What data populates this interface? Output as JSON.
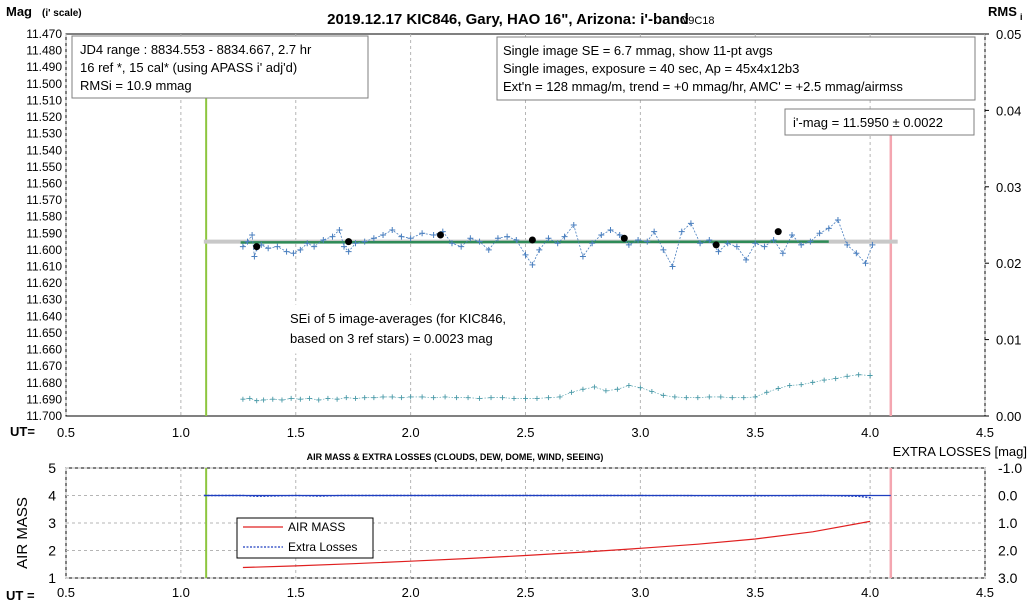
{
  "chart_data": [
    {
      "type": "scatter",
      "title": "2019.12.17 KIC846, Gary, HAO 16\", Arizona: i'-band",
      "version": "- v9C18",
      "ylabel": "Mag",
      "ylabel_sub": "(i' scale)",
      "y2label": "RMS",
      "y2label_sub": "i",
      "xlabel": "UT=",
      "xlim": [
        0.5,
        4.5
      ],
      "ylim": [
        11.47,
        11.7
      ],
      "y_inverted": true,
      "y2lim": [
        0.0,
        0.05
      ],
      "grid": true,
      "x_ticks": [
        "0.5",
        "1.0",
        "1.5",
        "2.0",
        "2.5",
        "3.0",
        "3.5",
        "4.0",
        "4.5"
      ],
      "y_ticks": [
        "11.470",
        "11.480",
        "11.490",
        "11.500",
        "11.510",
        "11.520",
        "11.530",
        "11.540",
        "11.550",
        "11.560",
        "11.570",
        "11.580",
        "11.590",
        "11.600",
        "11.610",
        "11.620",
        "11.630",
        "11.640",
        "11.650",
        "11.660",
        "11.670",
        "11.680",
        "11.690",
        "11.700"
      ],
      "y2_ticks": [
        "0.05",
        "0.04",
        "0.03",
        "0.02",
        "0.01",
        "0.00"
      ],
      "vertical_lines": {
        "green_ut": 1.11,
        "pink_ut": 4.09
      },
      "mean_mag": 11.595,
      "trend_line": {
        "x": [
          1.26,
          3.82
        ],
        "y": [
          11.5955,
          11.595
        ]
      },
      "individual_obs": {
        "x": [
          1.27,
          1.29,
          1.31,
          1.32,
          1.33,
          1.35,
          1.38,
          1.42,
          1.46,
          1.49,
          1.52,
          1.55,
          1.58,
          1.62,
          1.66,
          1.69,
          1.71,
          1.73,
          1.76,
          1.8,
          1.84,
          1.88,
          1.92,
          1.96,
          2.0,
          2.05,
          2.1,
          2.14,
          2.18,
          2.22,
          2.26,
          2.3,
          2.34,
          2.38,
          2.42,
          2.46,
          2.5,
          2.53,
          2.56,
          2.6,
          2.64,
          2.67,
          2.71,
          2.75,
          2.79,
          2.83,
          2.87,
          2.91,
          2.95,
          2.99,
          3.03,
          3.06,
          3.1,
          3.14,
          3.18,
          3.22,
          3.26,
          3.3,
          3.34,
          3.38,
          3.42,
          3.46,
          3.5,
          3.54,
          3.58,
          3.62,
          3.66,
          3.7,
          3.74,
          3.78,
          3.82,
          3.86,
          3.9,
          3.94,
          3.98,
          4.01
        ],
        "y": [
          11.598,
          11.595,
          11.591,
          11.604,
          11.599,
          11.597,
          11.599,
          11.598,
          11.601,
          11.602,
          11.6,
          11.596,
          11.598,
          11.594,
          11.592,
          11.588,
          11.598,
          11.601,
          11.596,
          11.595,
          11.593,
          11.591,
          11.588,
          11.592,
          11.593,
          11.59,
          11.591,
          11.589,
          11.596,
          11.598,
          11.593,
          11.595,
          11.6,
          11.593,
          11.592,
          11.594,
          11.603,
          11.609,
          11.6,
          11.593,
          11.596,
          11.592,
          11.585,
          11.604,
          11.596,
          11.591,
          11.588,
          11.591,
          11.597,
          11.594,
          11.595,
          11.589,
          11.6,
          11.61,
          11.589,
          11.584,
          11.596,
          11.594,
          11.601,
          11.596,
          11.598,
          11.606,
          11.596,
          11.598,
          11.594,
          11.602,
          11.591,
          11.597,
          11.595,
          11.59,
          11.587,
          11.582,
          11.597,
          11.602,
          11.608,
          11.597
        ]
      },
      "averages": {
        "x": [
          1.33,
          1.73,
          2.13,
          2.53,
          2.93,
          3.33,
          3.6
        ],
        "y": [
          11.598,
          11.595,
          11.591,
          11.594,
          11.593,
          11.597,
          11.589
        ]
      },
      "rms_series": {
        "x": [
          1.27,
          1.3,
          1.33,
          1.36,
          1.4,
          1.44,
          1.48,
          1.52,
          1.56,
          1.6,
          1.64,
          1.68,
          1.72,
          1.76,
          1.8,
          1.84,
          1.88,
          1.92,
          1.96,
          2.0,
          2.05,
          2.1,
          2.15,
          2.2,
          2.25,
          2.3,
          2.35,
          2.4,
          2.45,
          2.5,
          2.55,
          2.6,
          2.65,
          2.7,
          2.75,
          2.8,
          2.85,
          2.9,
          2.95,
          3.0,
          3.05,
          3.1,
          3.15,
          3.2,
          3.25,
          3.3,
          3.35,
          3.4,
          3.45,
          3.5,
          3.55,
          3.6,
          3.65,
          3.7,
          3.75,
          3.8,
          3.85,
          3.9,
          3.95,
          4.0
        ],
        "y": [
          0.0022,
          0.0023,
          0.002,
          0.0021,
          0.0022,
          0.0021,
          0.0023,
          0.0022,
          0.0023,
          0.0021,
          0.0023,
          0.0022,
          0.0024,
          0.0023,
          0.0024,
          0.0024,
          0.0025,
          0.0025,
          0.0024,
          0.0025,
          0.0025,
          0.0024,
          0.0025,
          0.0024,
          0.0024,
          0.0023,
          0.0024,
          0.0024,
          0.0023,
          0.0023,
          0.0023,
          0.0024,
          0.0025,
          0.0031,
          0.0035,
          0.0038,
          0.0033,
          0.0035,
          0.004,
          0.0037,
          0.0032,
          0.0027,
          0.0025,
          0.0024,
          0.0024,
          0.0025,
          0.0025,
          0.0024,
          0.0024,
          0.0025,
          0.0031,
          0.0036,
          0.004,
          0.0041,
          0.0044,
          0.0047,
          0.0049,
          0.0052,
          0.0054,
          0.0053
        ]
      }
    },
    {
      "type": "line",
      "title": "AIR MASS & EXTRA LOSSES (CLOUDS, DEW, DOME, WIND, SEEING)",
      "ylabel": "AIR MASS",
      "y2label": "EXTRA LOSSES [mag]",
      "xlabel": "UT =",
      "xlim": [
        0.5,
        4.5
      ],
      "ylim": [
        1,
        5
      ],
      "y2lim": [
        3.0,
        -1.0
      ],
      "grid": true,
      "x_ticks": [
        "0.5",
        "1.0",
        "1.5",
        "2.0",
        "2.5",
        "3.0",
        "3.5",
        "4.0",
        "4.5"
      ],
      "y_ticks": [
        "1",
        "2",
        "3",
        "4",
        "5"
      ],
      "y2_ticks": [
        "3.0",
        "2.0",
        "1.0",
        "0.0",
        "-1.0"
      ],
      "vertical_lines": {
        "green_ut": 1.11,
        "pink_ut": 4.09
      },
      "series": [
        {
          "name": "AIR MASS",
          "color": "#e02020",
          "x": [
            1.27,
            1.5,
            1.75,
            2.0,
            2.25,
            2.5,
            2.75,
            3.0,
            3.25,
            3.5,
            3.75,
            4.0
          ],
          "y": [
            1.38,
            1.44,
            1.52,
            1.61,
            1.71,
            1.82,
            1.94,
            2.08,
            2.23,
            2.42,
            2.68,
            3.06
          ]
        },
        {
          "name": "Extra Losses",
          "color": "#1f3fbf",
          "x": [
            1.1,
            1.27,
            1.33,
            1.5,
            1.6,
            1.7,
            2.0,
            2.5,
            3.0,
            3.5,
            3.8,
            3.95,
            4.0,
            4.01
          ],
          "y": [
            0.0,
            0.0,
            0.03,
            0.0,
            0.02,
            0.0,
            0.0,
            0.0,
            0.0,
            0.01,
            0.0,
            0.03,
            0.08,
            0.12
          ]
        }
      ],
      "legend": "inside-left"
    }
  ],
  "annotations": {
    "box1": [
      "JD4 range : 8834.553 - 8834.667, 2.7  hr",
      "16 ref *, 15 cal* (using APASS i' adj'd)",
      "RMSi = 10.9 mmag"
    ],
    "box2": [
      "Single image SE = 6.7 mmag, show 11-pt avgs",
      "Single images, exposure = 40 sec, Ap = 45x4x12b3",
      "Ext'n = 128 mmag/m, trend = +0 mmag/hr, AMC' = +2.5 mmag/airmss"
    ],
    "box3": "i'-mag = 11.5950 ± 0.0022",
    "box4": [
      "SEi of 5 image-averages (for KIC846,",
      "based on 3 ref stars) = 0.0023 mag"
    ]
  },
  "colors": {
    "obs_points": "#4a7fbf",
    "rms_points": "#4a9aa8",
    "trend_line": "#2e8b57",
    "mean_line": "#c8c8c8",
    "green_marker": "#8dc63f",
    "pink_marker": "#f4a6b0",
    "grid": "#b5b5b5"
  }
}
